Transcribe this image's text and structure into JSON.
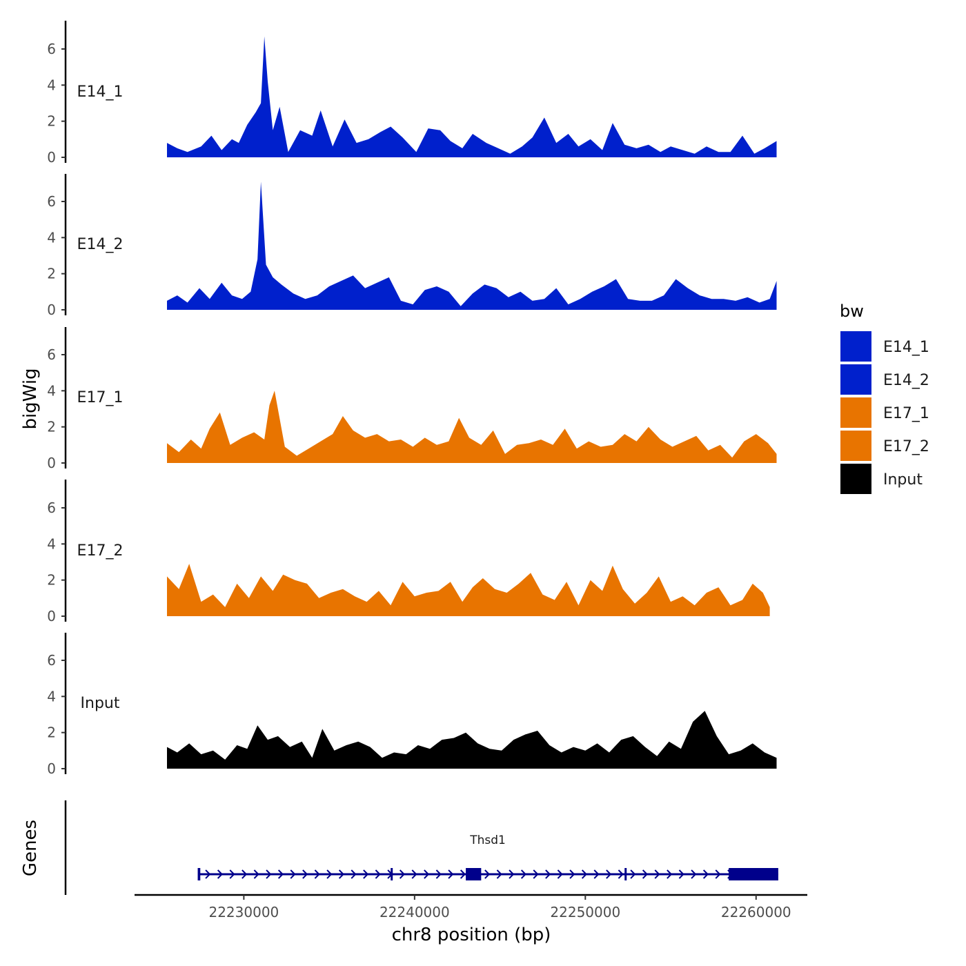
{
  "chart_data": {
    "type": "area",
    "ylabel": "bigWig",
    "xlabel": "chr8 position (bp)",
    "ylim": [
      0,
      7.5
    ],
    "yticks": [
      0,
      2,
      4,
      6
    ],
    "xlim": [
      22223600,
      22263000
    ],
    "data_range": [
      22225500,
      22261200
    ],
    "xticks": [
      22230000,
      22240000,
      22250000,
      22260000
    ],
    "legend": {
      "title": "bw",
      "position": "right",
      "entries": [
        {
          "label": "E14_1",
          "color": "#0020CC"
        },
        {
          "label": "E14_2",
          "color": "#0020CC"
        },
        {
          "label": "E17_1",
          "color": "#E87400"
        },
        {
          "label": "E17_2",
          "color": "#E87400"
        },
        {
          "label": "Input",
          "color": "#000000"
        }
      ]
    },
    "series": [
      {
        "name": "E14_1",
        "color": "#0020CC",
        "x": [
          22225500,
          22226100,
          22226700,
          22227500,
          22228100,
          22228700,
          22229300,
          22229700,
          22230200,
          22230700,
          22231000,
          22231200,
          22231400,
          22231700,
          22232100,
          22232600,
          22233300,
          22234000,
          22234500,
          22235200,
          22235900,
          22236600,
          22237300,
          22238000,
          22238600,
          22239300,
          22240100,
          22240800,
          22241500,
          22242100,
          22242800,
          22243400,
          22244200,
          22244900,
          22245600,
          22246300,
          22246900,
          22247600,
          22248300,
          22249000,
          22249600,
          22250300,
          22251000,
          22251600,
          22252300,
          22253000,
          22253700,
          22254400,
          22255000,
          22255700,
          22256400,
          22257100,
          22257800,
          22258500,
          22259200,
          22259900,
          22260500,
          22261200
        ],
        "y": [
          0.8,
          0.5,
          0.3,
          0.6,
          1.2,
          0.4,
          1.0,
          0.8,
          1.8,
          2.5,
          3.0,
          6.7,
          4.2,
          1.5,
          2.8,
          0.3,
          1.5,
          1.2,
          2.6,
          0.6,
          2.1,
          0.8,
          1.0,
          1.4,
          1.7,
          1.1,
          0.3,
          1.6,
          1.5,
          0.9,
          0.5,
          1.3,
          0.8,
          0.5,
          0.2,
          0.6,
          1.1,
          2.2,
          0.8,
          1.3,
          0.6,
          1.0,
          0.4,
          1.9,
          0.7,
          0.5,
          0.7,
          0.3,
          0.6,
          0.4,
          0.2,
          0.6,
          0.3,
          0.3,
          1.2,
          0.2,
          0.5,
          0.9
        ]
      },
      {
        "name": "E14_2",
        "color": "#0020CC",
        "x": [
          22225500,
          22226100,
          22226700,
          22227400,
          22228000,
          22228700,
          22229300,
          22229900,
          22230400,
          22230800,
          22231000,
          22231300,
          22231700,
          22232200,
          22232900,
          22233600,
          22234300,
          22235000,
          22235700,
          22236400,
          22237100,
          22237800,
          22238500,
          22239200,
          22239900,
          22240600,
          22241300,
          22242000,
          22242700,
          22243400,
          22244100,
          22244800,
          22245500,
          22246200,
          22246900,
          22247600,
          22248300,
          22249000,
          22249700,
          22250400,
          22251100,
          22251800,
          22252500,
          22253200,
          22253900,
          22254600,
          22255300,
          22256000,
          22256700,
          22257400,
          22258100,
          22258800,
          22259500,
          22260200,
          22260800,
          22261200
        ],
        "y": [
          0.5,
          0.8,
          0.4,
          1.2,
          0.6,
          1.5,
          0.8,
          0.6,
          1.0,
          2.8,
          7.1,
          2.5,
          1.8,
          1.4,
          0.9,
          0.6,
          0.8,
          1.3,
          1.6,
          1.9,
          1.2,
          1.5,
          1.8,
          0.5,
          0.3,
          1.1,
          1.3,
          1.0,
          0.2,
          0.9,
          1.4,
          1.2,
          0.7,
          1.0,
          0.5,
          0.6,
          1.2,
          0.3,
          0.6,
          1.0,
          1.3,
          1.7,
          0.6,
          0.5,
          0.5,
          0.8,
          1.7,
          1.2,
          0.8,
          0.6,
          0.6,
          0.5,
          0.7,
          0.4,
          0.6,
          1.6
        ]
      },
      {
        "name": "E17_1",
        "color": "#E87400",
        "x": [
          22225500,
          22226200,
          22226900,
          22227500,
          22228000,
          22228600,
          22229200,
          22229900,
          22230600,
          22231200,
          22231500,
          22231800,
          22232400,
          22233100,
          22233800,
          22234500,
          22235200,
          22235800,
          22236400,
          22237100,
          22237800,
          22238500,
          22239200,
          22239900,
          22240600,
          22241300,
          22242000,
          22242600,
          22243200,
          22243900,
          22244600,
          22245300,
          22246000,
          22246700,
          22247400,
          22248100,
          22248800,
          22249500,
          22250200,
          22250900,
          22251600,
          22252300,
          22253000,
          22253700,
          22254400,
          22255100,
          22255800,
          22256500,
          22257200,
          22257900,
          22258600,
          22259300,
          22260000,
          22260700,
          22261200
        ],
        "y": [
          1.1,
          0.6,
          1.3,
          0.8,
          1.9,
          2.8,
          1.0,
          1.4,
          1.7,
          1.3,
          3.2,
          4.0,
          0.9,
          0.4,
          0.8,
          1.2,
          1.6,
          2.6,
          1.8,
          1.4,
          1.6,
          1.2,
          1.3,
          0.9,
          1.4,
          1.0,
          1.2,
          2.5,
          1.4,
          1.0,
          1.8,
          0.5,
          1.0,
          1.1,
          1.3,
          1.0,
          1.9,
          0.8,
          1.2,
          0.9,
          1.0,
          1.6,
          1.2,
          2.0,
          1.3,
          0.9,
          1.2,
          1.5,
          0.7,
          1.0,
          0.3,
          1.2,
          1.6,
          1.1,
          0.5
        ]
      },
      {
        "name": "E17_2",
        "color": "#E87400",
        "x": [
          22225500,
          22226200,
          22226800,
          22227500,
          22228200,
          22228900,
          22229600,
          22230300,
          22231000,
          22231700,
          22232300,
          22233000,
          22233700,
          22234400,
          22235100,
          22235800,
          22236500,
          22237200,
          22237900,
          22238600,
          22239300,
          22240000,
          22240700,
          22241400,
          22242100,
          22242800,
          22243400,
          22244000,
          22244700,
          22245400,
          22246100,
          22246800,
          22247500,
          22248200,
          22248900,
          22249600,
          22250300,
          22251000,
          22251600,
          22252200,
          22252900,
          22253600,
          22254300,
          22255000,
          22255700,
          22256400,
          22257100,
          22257800,
          22258500,
          22259200,
          22259800,
          22260400,
          22260800
        ],
        "y": [
          2.2,
          1.5,
          2.9,
          0.8,
          1.2,
          0.5,
          1.8,
          1.0,
          2.2,
          1.4,
          2.3,
          2.0,
          1.8,
          1.0,
          1.3,
          1.5,
          1.1,
          0.8,
          1.4,
          0.6,
          1.9,
          1.1,
          1.3,
          1.4,
          1.9,
          0.8,
          1.6,
          2.1,
          1.5,
          1.3,
          1.8,
          2.4,
          1.2,
          0.9,
          1.9,
          0.6,
          2.0,
          1.4,
          2.8,
          1.5,
          0.7,
          1.3,
          2.2,
          0.8,
          1.1,
          0.6,
          1.3,
          1.6,
          0.6,
          0.9,
          1.8,
          1.3,
          0.5
        ]
      },
      {
        "name": "Input",
        "color": "#000000",
        "x": [
          22225500,
          22226100,
          22226800,
          22227500,
          22228200,
          22228900,
          22229600,
          22230200,
          22230800,
          22231400,
          22232000,
          22232700,
          22233400,
          22234000,
          22234600,
          22235300,
          22236000,
          22236700,
          22237400,
          22238100,
          22238800,
          22239500,
          22240200,
          22240900,
          22241600,
          22242300,
          22243000,
          22243700,
          22244400,
          22245100,
          22245800,
          22246500,
          22247200,
          22247900,
          22248600,
          22249300,
          22250000,
          22250700,
          22251400,
          22252100,
          22252800,
          22253500,
          22254200,
          22254900,
          22255600,
          22256300,
          22257000,
          22257700,
          22258400,
          22259100,
          22259800,
          22260500,
          22261200
        ],
        "y": [
          1.2,
          0.9,
          1.4,
          0.8,
          1.0,
          0.5,
          1.3,
          1.1,
          2.4,
          1.6,
          1.8,
          1.2,
          1.5,
          0.6,
          2.2,
          1.0,
          1.3,
          1.5,
          1.2,
          0.6,
          0.9,
          0.8,
          1.3,
          1.1,
          1.6,
          1.7,
          2.0,
          1.4,
          1.1,
          1.0,
          1.6,
          1.9,
          2.1,
          1.3,
          0.9,
          1.2,
          1.0,
          1.4,
          0.9,
          1.6,
          1.8,
          1.2,
          0.7,
          1.5,
          1.1,
          2.6,
          3.2,
          1.8,
          0.8,
          1.0,
          1.4,
          0.9,
          0.6
        ]
      }
    ],
    "genes_track": {
      "label": "Genes",
      "gene_name": "Thsd1",
      "color": "#00008B",
      "line_start": 22227400,
      "line_end": 22261300,
      "exons": [
        {
          "start": 22227300,
          "end": 22227450,
          "kind": "tick"
        },
        {
          "start": 22238600,
          "end": 22238700,
          "kind": "tick"
        },
        {
          "start": 22243000,
          "end": 22243900,
          "kind": "box"
        },
        {
          "start": 22252300,
          "end": 22252400,
          "kind": "tick"
        },
        {
          "start": 22258400,
          "end": 22261300,
          "kind": "box"
        }
      ]
    }
  }
}
